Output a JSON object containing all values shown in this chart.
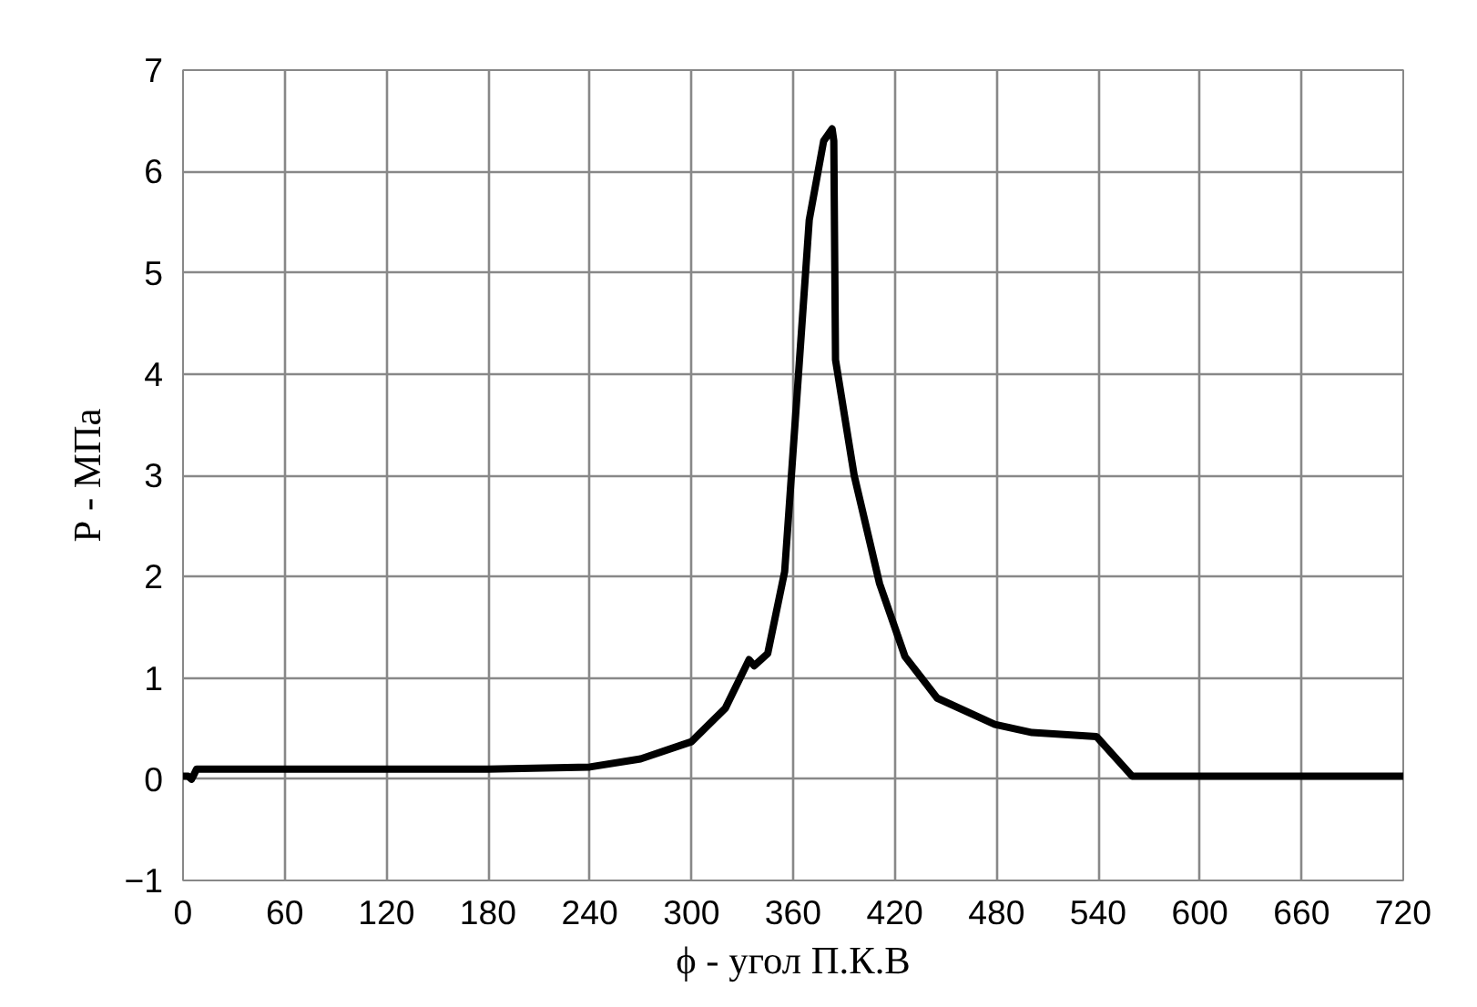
{
  "chart_data": {
    "type": "line",
    "xlabel": "ϕ - угол П.К.В",
    "ylabel": "Р - МПа",
    "x": [
      0,
      3,
      5,
      6,
      8,
      60,
      120,
      180,
      240,
      270,
      300,
      320,
      334,
      337,
      345,
      355,
      362,
      369.5,
      378,
      383,
      384,
      385,
      396,
      411,
      426,
      445,
      479,
      501,
      539,
      560,
      640,
      720
    ],
    "series": [
      {
        "color": "#000000",
        "values": [
          0.03,
          0.03,
          0.0,
          0.03,
          0.1,
          0.1,
          0.1,
          0.1,
          0.12,
          0.2,
          0.37,
          0.7,
          1.18,
          1.12,
          1.24,
          2.05,
          3.72,
          5.52,
          6.3,
          6.42,
          6.3,
          4.14,
          3.0,
          1.93,
          1.21,
          0.8,
          0.54,
          0.46,
          0.42,
          0.03,
          0.03,
          0.03
        ]
      }
    ],
    "xlim": [
      0,
      720
    ],
    "ylim": [
      -1,
      7
    ],
    "xticks": [
      0,
      60,
      120,
      180,
      240,
      300,
      360,
      420,
      480,
      540,
      600,
      660,
      720
    ],
    "yticks": [
      -1,
      0,
      1,
      2,
      3,
      4,
      5,
      6,
      7
    ],
    "grid": true,
    "marker": "none",
    "line_style": "solid"
  }
}
